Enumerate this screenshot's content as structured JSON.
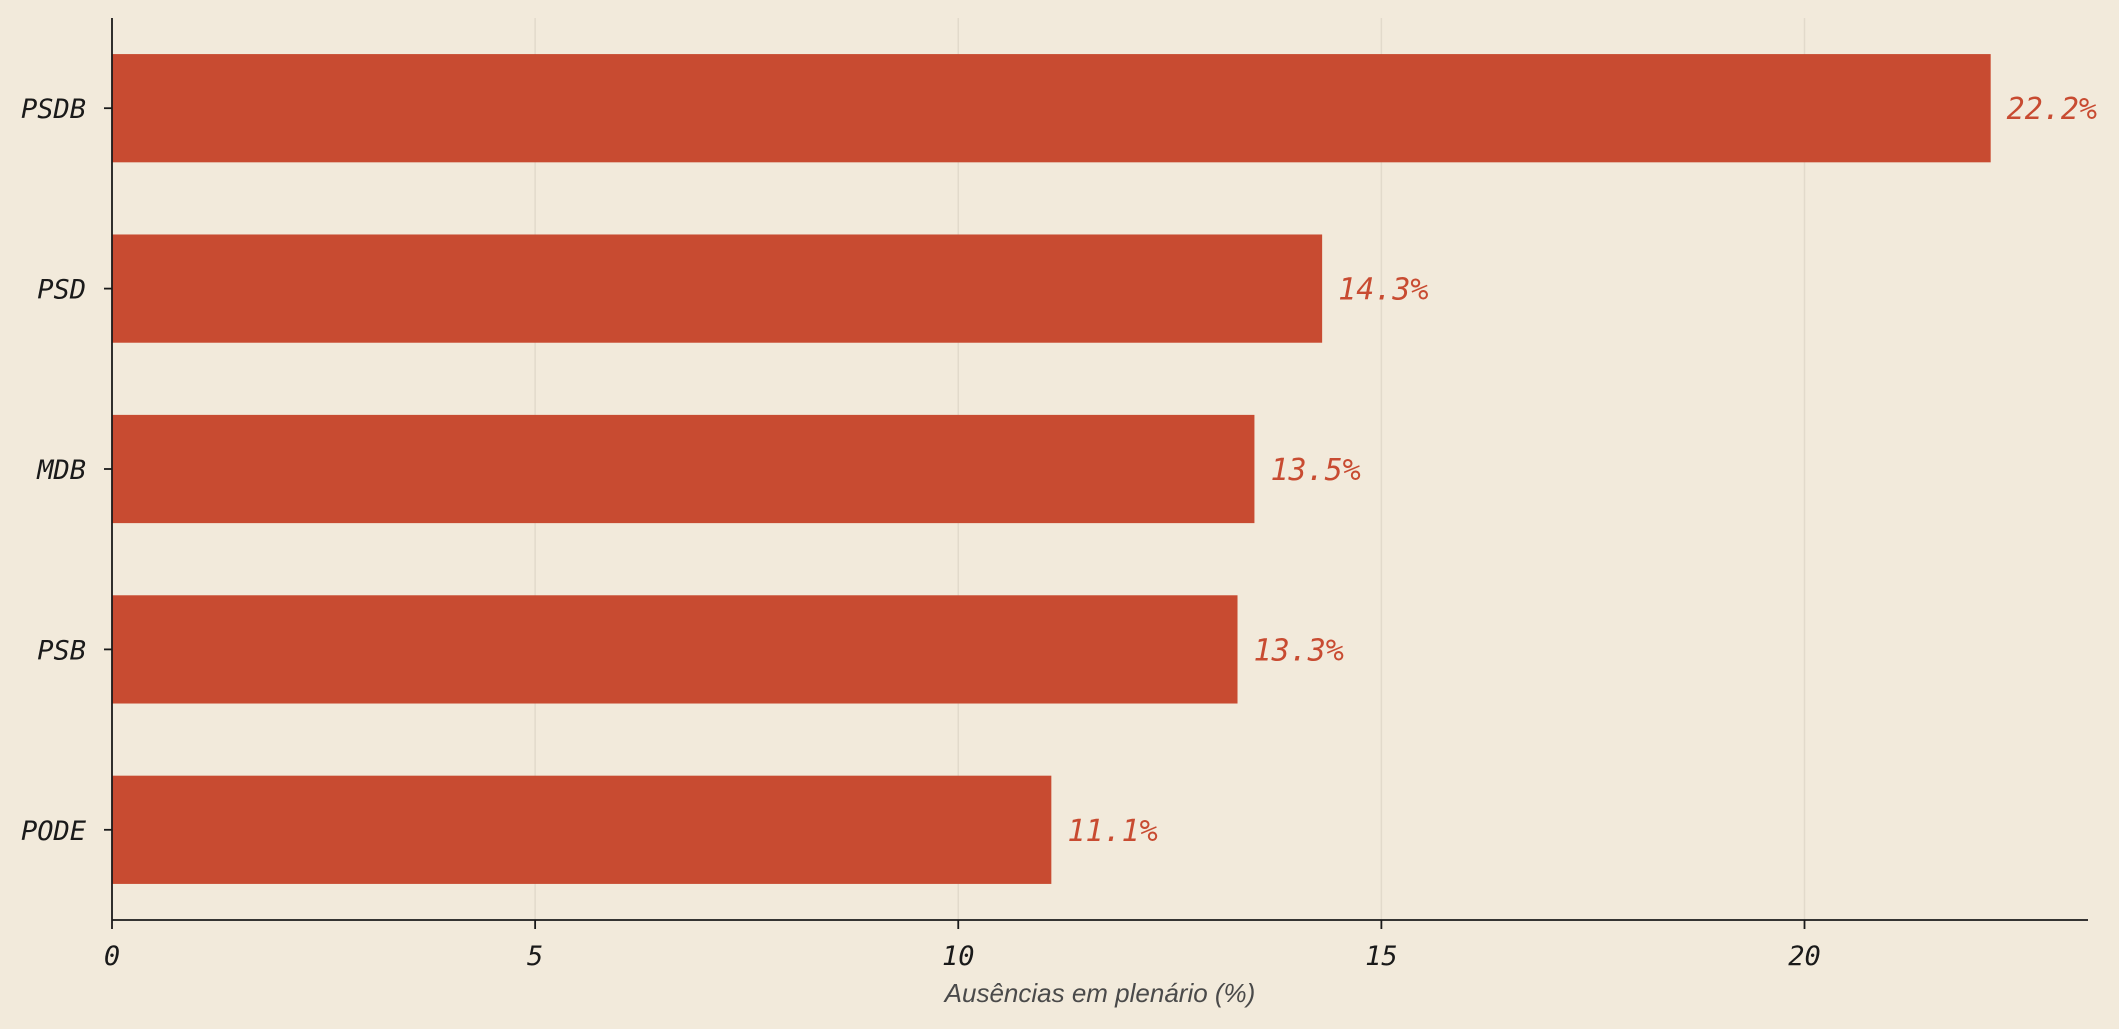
{
  "chart_data": {
    "type": "bar",
    "orientation": "horizontal",
    "categories": [
      "PSDB",
      "PSD",
      "MDB",
      "PSB",
      "PODE"
    ],
    "values": [
      22.2,
      14.3,
      13.5,
      13.3,
      11.1
    ],
    "value_labels": [
      "22.2%",
      "14.3%",
      "13.5%",
      "13.3%",
      "11.1%"
    ],
    "title": "",
    "xlabel": "Ausências em plenário (%)",
    "ylabel": "",
    "xlim": [
      0,
      23.35
    ],
    "xticks": [
      0,
      5,
      10,
      15,
      20
    ],
    "grid": "vertical",
    "legend": "none",
    "colors": {
      "bar": "#c84b31",
      "value_label": "#c84b31",
      "background": "#f2eadb",
      "grid": "#e2dacb",
      "axis": "#1a1a1a"
    }
  }
}
